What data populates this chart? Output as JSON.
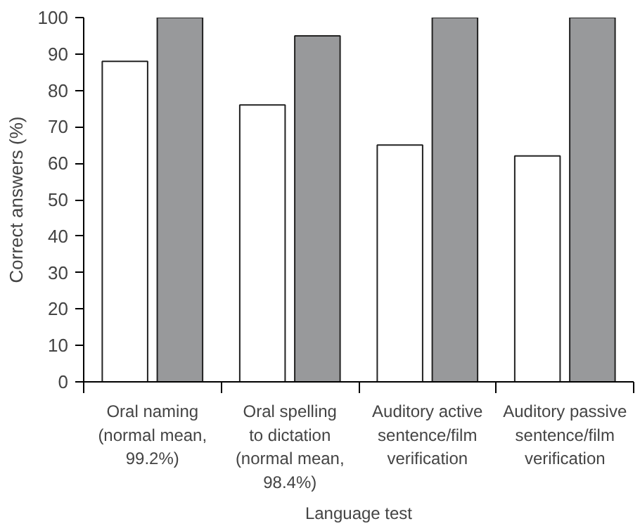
{
  "chart_data": {
    "type": "bar",
    "categories": [
      "Oral naming\n(normal mean,\n99.2%)",
      "Oral spelling\nto dictation\n(normal mean,\n98.4%)",
      "Auditory active\nsentence/film\nverification",
      "Auditory passive\nsentence/film\nverification"
    ],
    "series": [
      {
        "color": "#ffffff",
        "values": [
          88,
          76,
          65,
          62
        ]
      },
      {
        "color": "#98999b",
        "values": [
          100,
          95,
          100,
          100
        ]
      }
    ],
    "xlabel": "Language test",
    "ylabel": "Correct answers (%)",
    "ylim": [
      0,
      100
    ],
    "yticks": [
      0,
      10,
      20,
      30,
      40,
      50,
      60,
      70,
      80,
      90,
      100
    ]
  }
}
